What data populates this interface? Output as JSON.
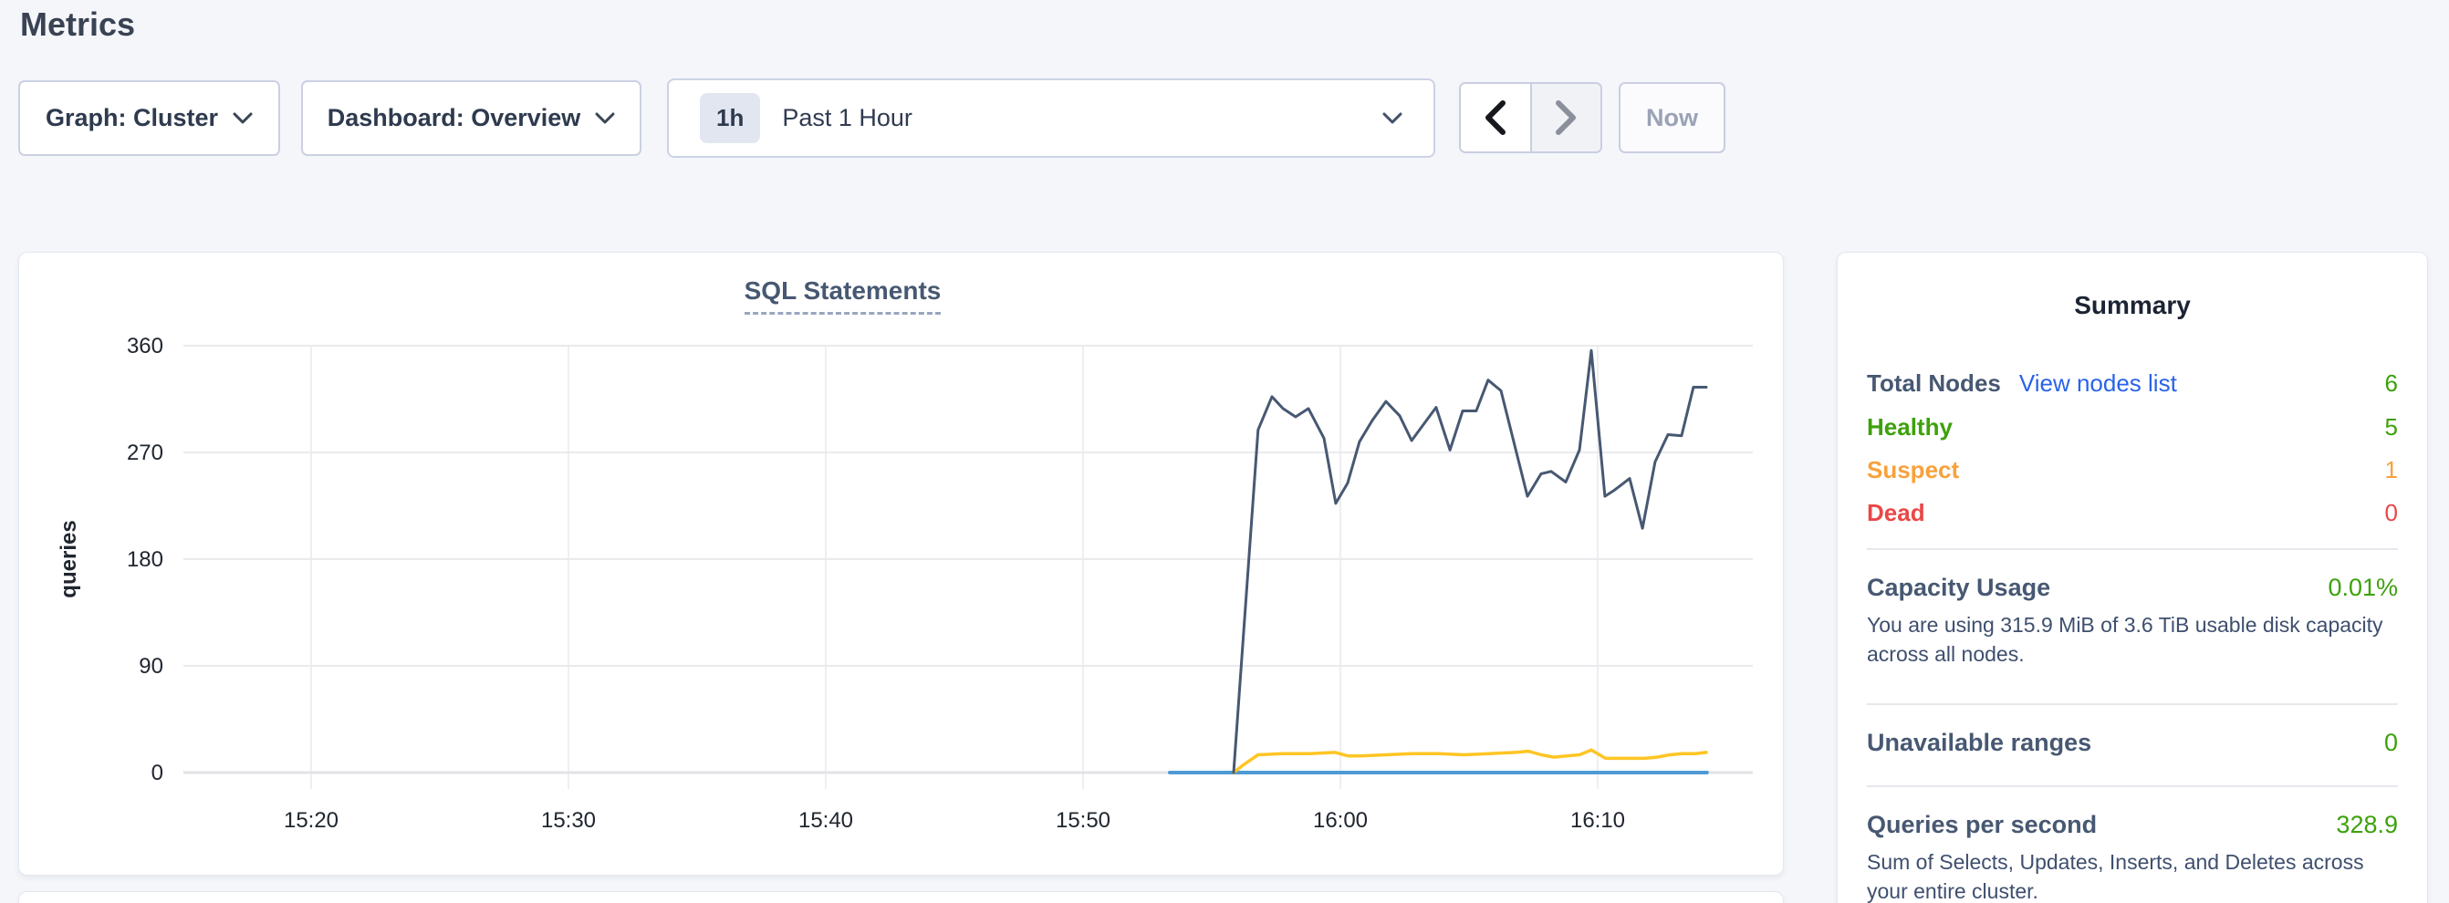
{
  "page": {
    "title": "Metrics"
  },
  "toolbar": {
    "graph_dropdown": {
      "label": "Graph: Cluster"
    },
    "dashboard_dropdown": {
      "label": "Dashboard: Overview"
    },
    "time_picker": {
      "badge": "1h",
      "label": "Past 1 Hour"
    },
    "now_button": "Now"
  },
  "colors": {
    "accent_slate": "#475872",
    "green": "#3DA10C",
    "orange": "#F7A23C",
    "red": "#EA4747",
    "link_blue": "#2A63E8",
    "series_dark": "#475872",
    "series_yellow": "#FFC524",
    "series_blue": "#4D9AD5"
  },
  "chart_data": {
    "type": "line",
    "title": "SQL Statements",
    "ylabel": "queries",
    "ylim": [
      0,
      360
    ],
    "yticks": [
      0,
      90,
      180,
      270,
      360
    ],
    "xticks": [
      "15:20",
      "15:30",
      "15:40",
      "15:50",
      "16:00",
      "16:10"
    ],
    "xtick_minutes": [
      20,
      30,
      40,
      50,
      60,
      70
    ],
    "x_domain_minutes": [
      15.0,
      75.5
    ],
    "grid": true,
    "legend": "none",
    "series": [
      {
        "name": "series-blue-flat",
        "color": "#4D9AD5",
        "width": 4,
        "points": [
          [
            53.37,
            0
          ],
          [
            74.25,
            0
          ]
        ]
      },
      {
        "name": "series-yellow",
        "color": "#FFC524",
        "width": 3.5,
        "points": [
          [
            55.85,
            0
          ],
          [
            56.2,
            6
          ],
          [
            56.8,
            15
          ],
          [
            57.8,
            16
          ],
          [
            58.8,
            16
          ],
          [
            59.8,
            17
          ],
          [
            60.3,
            14
          ],
          [
            60.8,
            14
          ],
          [
            61.8,
            15
          ],
          [
            62.8,
            16
          ],
          [
            63.8,
            16
          ],
          [
            64.8,
            15
          ],
          [
            65.8,
            16
          ],
          [
            66.8,
            17
          ],
          [
            67.3,
            18
          ],
          [
            67.8,
            15
          ],
          [
            68.3,
            13
          ],
          [
            68.8,
            14
          ],
          [
            69.3,
            15
          ],
          [
            69.75,
            19
          ],
          [
            70.3,
            12
          ],
          [
            70.8,
            12
          ],
          [
            71.3,
            12
          ],
          [
            71.8,
            12
          ],
          [
            72.3,
            13
          ],
          [
            72.8,
            15
          ],
          [
            73.3,
            16
          ],
          [
            73.8,
            16
          ],
          [
            74.22,
            17
          ]
        ]
      },
      {
        "name": "series-dark",
        "color": "#475872",
        "width": 3,
        "points": [
          [
            55.85,
            0
          ],
          [
            56.8,
            289
          ],
          [
            57.34,
            317
          ],
          [
            57.77,
            307
          ],
          [
            58.26,
            300
          ],
          [
            58.76,
            307
          ],
          [
            59.36,
            282
          ],
          [
            59.82,
            227
          ],
          [
            60.28,
            244
          ],
          [
            60.74,
            279
          ],
          [
            61.24,
            297
          ],
          [
            61.77,
            313
          ],
          [
            62.3,
            301
          ],
          [
            62.77,
            280
          ],
          [
            63.72,
            308
          ],
          [
            64.26,
            272
          ],
          [
            64.75,
            305
          ],
          [
            65.28,
            305
          ],
          [
            65.74,
            331
          ],
          [
            66.24,
            322
          ],
          [
            67.27,
            233
          ],
          [
            67.8,
            252
          ],
          [
            68.19,
            254
          ],
          [
            68.76,
            245
          ],
          [
            69.29,
            272
          ],
          [
            69.75,
            356
          ],
          [
            70.28,
            233
          ],
          [
            70.64,
            238
          ],
          [
            71.24,
            248
          ],
          [
            71.74,
            206
          ],
          [
            72.23,
            262
          ],
          [
            72.73,
            285
          ],
          [
            73.26,
            284
          ],
          [
            73.72,
            325
          ],
          [
            74.22,
            325
          ]
        ]
      }
    ]
  },
  "summary": {
    "title": "Summary",
    "node_rows": [
      {
        "label": "Total Nodes",
        "link": "View nodes list",
        "value": "6",
        "label_color": "#475872",
        "value_color": "#3DA10C"
      },
      {
        "label": "Healthy",
        "value": "5",
        "label_color": "#3DA10C",
        "value_color": "#3DA10C"
      },
      {
        "label": "Suspect",
        "value": "1",
        "label_color": "#F7A23C",
        "value_color": "#F7A23C"
      },
      {
        "label": "Dead",
        "value": "0",
        "label_color": "#EA4747",
        "value_color": "#EA4747"
      }
    ],
    "capacity": {
      "label": "Capacity Usage",
      "value": "0.01%",
      "caption": "You are using 315.9 MiB of 3.6 TiB usable disk capacity across all nodes.",
      "label_color": "#475872",
      "value_color": "#3DA10C"
    },
    "unavailable": {
      "label": "Unavailable ranges",
      "value": "0",
      "label_color": "#475872",
      "value_color": "#3DA10C"
    },
    "qps": {
      "label": "Queries per second",
      "value": "328.9",
      "caption": "Sum of Selects, Updates, Inserts, and Deletes across your entire cluster.",
      "label_color": "#475872",
      "value_color": "#3DA10C"
    }
  }
}
